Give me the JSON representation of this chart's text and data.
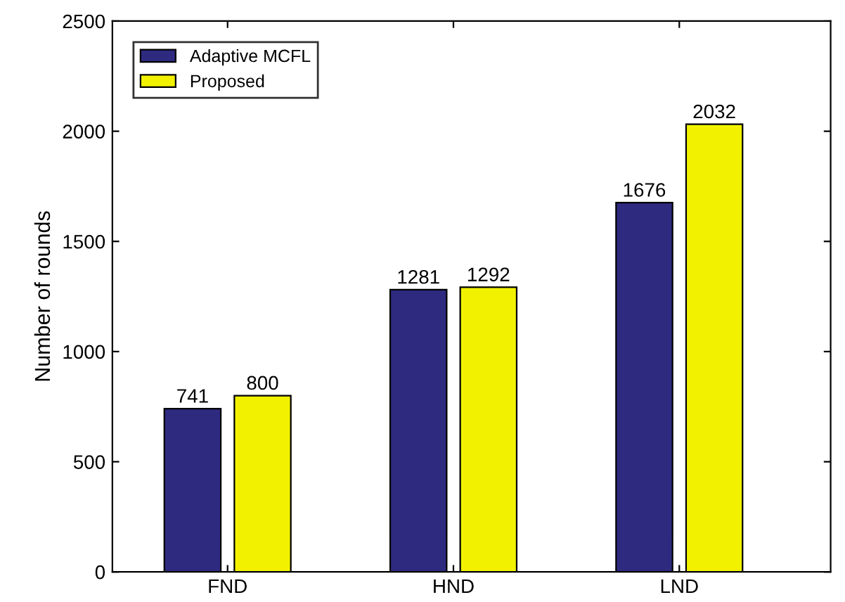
{
  "chart_data": {
    "type": "bar",
    "ylabel": "Number of rounds",
    "categories": [
      "FND",
      "HND",
      "LND"
    ],
    "series": [
      {
        "name": "Adaptive MCFL",
        "color": "#2e2a80",
        "values": [
          741,
          1281,
          1676
        ]
      },
      {
        "name": "Proposed",
        "color": "#f2f200",
        "values": [
          800,
          1292,
          2032
        ]
      }
    ],
    "ylim": [
      0,
      2500
    ],
    "yticks": [
      0,
      500,
      1000,
      1500,
      2000,
      2500
    ],
    "data_labels": true,
    "grid": false,
    "legend": "top left"
  }
}
